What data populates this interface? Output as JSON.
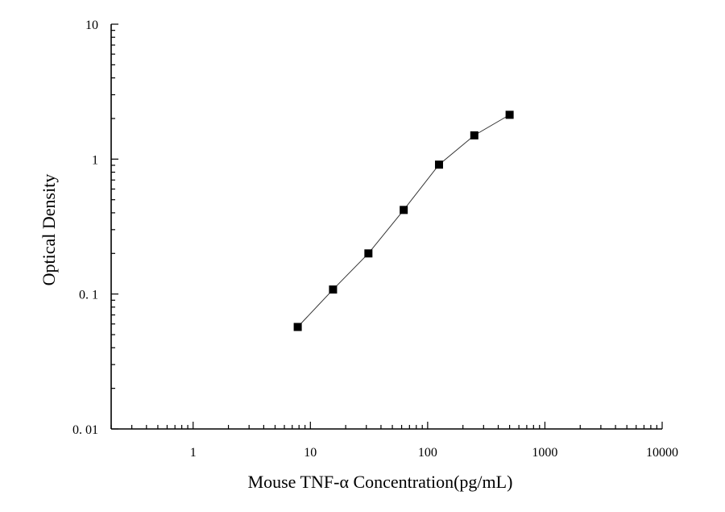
{
  "chart_data": {
    "type": "scatter",
    "title": "",
    "xlabel": "Mouse TNF-α Concentration(pg/mL)",
    "ylabel": "Optical Density",
    "x_scale": "log",
    "y_scale": "log",
    "xlim": [
      0.2,
      10000
    ],
    "ylim": [
      0.01,
      10
    ],
    "x_ticks": [
      1,
      10,
      100,
      1000,
      10000
    ],
    "x_tick_labels": [
      "1",
      "10",
      "100",
      "1000",
      "10000"
    ],
    "y_ticks": [
      0.01,
      0.1,
      1,
      10
    ],
    "y_tick_labels": [
      "0. 01",
      "0. 1",
      "1",
      "10"
    ],
    "grid": false,
    "series": [
      {
        "marker": "square",
        "connected": true,
        "color": "#000000",
        "x": [
          7.8,
          15.6,
          31.25,
          62.5,
          125,
          250,
          500
        ],
        "y": [
          0.057,
          0.108,
          0.2,
          0.42,
          0.91,
          1.5,
          2.13
        ]
      }
    ]
  }
}
